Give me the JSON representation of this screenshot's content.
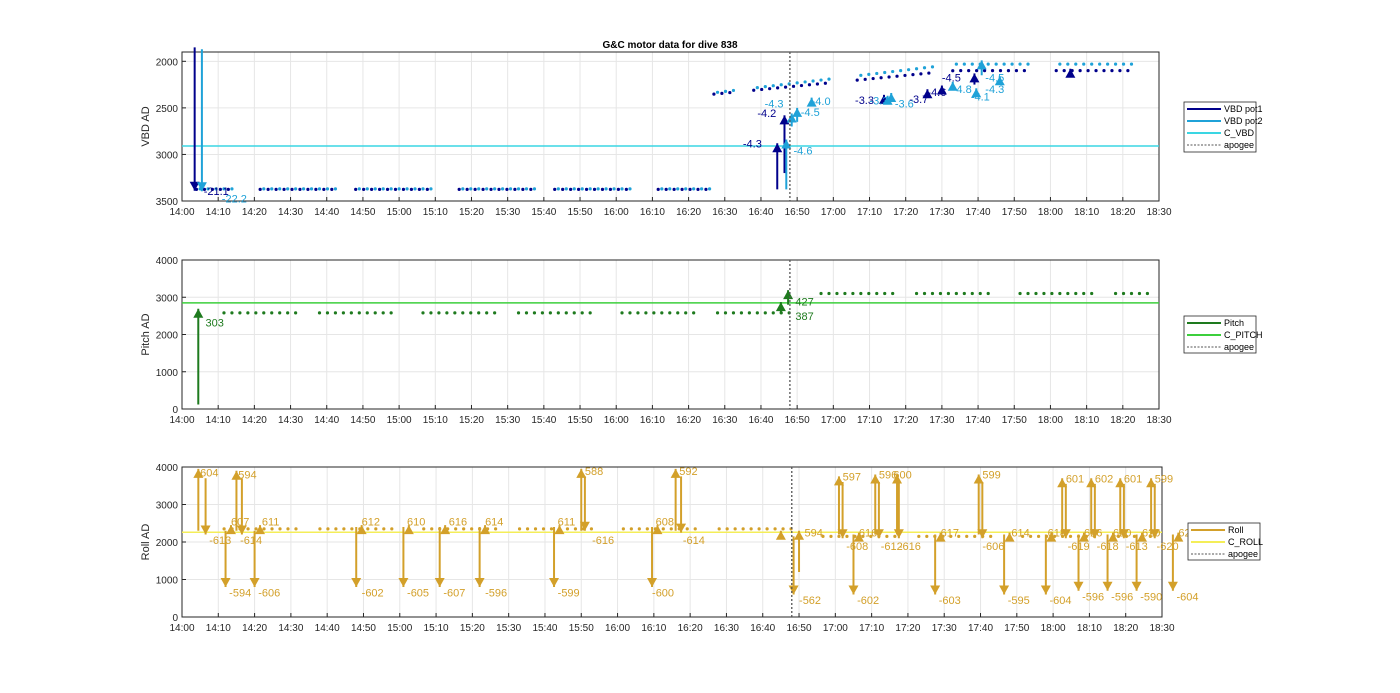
{
  "figure": {
    "title": "G&C motor data for dive 838"
  },
  "colors": {
    "vbd_pot1": "#00008b",
    "vbd_pot2": "#1fa2d8",
    "c_vbd": "#3ad6e3",
    "pitch": "#1e7a1e",
    "c_pitch": "#3ccf3c",
    "roll": "#d3a02a",
    "c_roll": "#f4ee58",
    "apogee": "#555555"
  },
  "chart_data": [
    {
      "type": "line",
      "id": "vbd",
      "title": "G&C motor data for dive 838",
      "xlabel": "",
      "ylabel": "VBD AD",
      "y_reversed": true,
      "ylim": [
        1900,
        3500
      ],
      "yticks": [
        2000,
        2500,
        3000,
        3500
      ],
      "xlim": [
        840,
        1110
      ],
      "xticks": [
        "14:00",
        "14:10",
        "14:20",
        "14:30",
        "14:40",
        "14:50",
        "15:00",
        "15:10",
        "15:20",
        "15:30",
        "15:40",
        "15:50",
        "16:00",
        "16:10",
        "16:20",
        "16:30",
        "16:40",
        "16:50",
        "17:00",
        "17:10",
        "17:20",
        "17:30",
        "17:40",
        "17:50",
        "18:00",
        "18:10",
        "18:20",
        "18:30"
      ],
      "grid": true,
      "legend_position": "outside-right",
      "legend": [
        "VBD pot1",
        "VBD pot2",
        "C_VBD",
        "apogee"
      ],
      "reference_line": {
        "name": "C_VBD",
        "y": 2910
      },
      "apogee_x": 1008,
      "series": [
        {
          "name": "VBD pot1",
          "x_range": [
            844,
            1108
          ],
          "y_before": 3375,
          "x_change": 985,
          "y_after": 2100,
          "drift_to": 2100
        },
        {
          "name": "VBD pot2",
          "x_range": [
            845,
            1108
          ],
          "y_before": 3370,
          "x_change": 986,
          "y_after": 2030,
          "drift_to": 2010
        }
      ],
      "arrows": [
        {
          "series": "VBD pot1",
          "x": 843.5,
          "y_from": 1850,
          "y_to": 3390,
          "label": "-21.1",
          "lx": 846,
          "ly": 3390
        },
        {
          "series": "VBD pot2",
          "x": 845.5,
          "y_from": 1870,
          "y_to": 3395,
          "label": "-22.2",
          "lx": 851,
          "ly": 3475
        },
        {
          "series": "VBD pot1",
          "x": 1004.5,
          "y_from": 3375,
          "y_to": 2880,
          "label": "-4.3",
          "lx": 995,
          "ly": 2885
        },
        {
          "series": "VBD pot1",
          "x": 1006.5,
          "y_from": 3200,
          "y_to": 2580,
          "label": "-4.2",
          "lx": 999,
          "ly": 2555
        },
        {
          "series": "VBD pot2",
          "x": 1007,
          "y_from": 3375,
          "y_to": 2840,
          "label": "-4.6",
          "lx": 1009,
          "ly": 2960
        },
        {
          "series": "VBD pot2",
          "x": 1008.5,
          "y_from": 2700,
          "y_to": 2560,
          "label": "-4.3",
          "lx": 1001,
          "ly": 2455
        },
        {
          "series": "VBD pot2",
          "x": 1010,
          "y_from": 2650,
          "y_to": 2500,
          "label": "-4.5",
          "lx": 1011,
          "ly": 2545
        },
        {
          "series": "VBD pot2",
          "x": 1014,
          "y_from": 2450,
          "y_to": 2390,
          "label": "-4.0",
          "lx": 1014,
          "ly": 2425
        },
        {
          "series": "VBD pot1",
          "x": 1034,
          "y_from": 2430,
          "y_to": 2360,
          "label": "-3.3",
          "lx": 1026,
          "ly": 2415
        },
        {
          "series": "VBD pot2",
          "x": 1035,
          "y_from": 2430,
          "y_to": 2370,
          "label": "-3.3",
          "lx": 1030,
          "ly": 2420
        },
        {
          "series": "VBD pot2",
          "x": 1036,
          "y_from": 2420,
          "y_to": 2340,
          "label": "-3.6",
          "lx": 1037,
          "ly": 2455
        },
        {
          "series": "VBD pot1",
          "x": 1046,
          "y_from": 2390,
          "y_to": 2300,
          "label": "-3.7",
          "lx": 1041,
          "ly": 2405
        },
        {
          "series": "VBD pot1",
          "x": 1050,
          "y_from": 2350,
          "y_to": 2260,
          "label": "-4.6",
          "lx": 1046,
          "ly": 2330
        },
        {
          "series": "VBD pot2",
          "x": 1053,
          "y_from": 2310,
          "y_to": 2220,
          "label": "-4.8",
          "lx": 1053,
          "ly": 2295
        },
        {
          "series": "VBD pot1",
          "x": 1059,
          "y_from": 2250,
          "y_to": 2130,
          "label": "-4.5",
          "lx": 1050,
          "ly": 2175
        },
        {
          "series": "VBD pot2",
          "x": 1059.5,
          "y_from": 2350,
          "y_to": 2290,
          "label": "-4.1",
          "lx": 1058,
          "ly": 2380
        },
        {
          "series": "VBD pot2",
          "x": 1061,
          "y_from": 2150,
          "y_to": 1990,
          "label": "-4.3",
          "lx": 1062,
          "ly": 2295
        },
        {
          "series": "VBD pot2",
          "x": 1066,
          "y_from": 2230,
          "y_to": 2160,
          "label": "-4.5",
          "lx": 1062,
          "ly": 2175
        },
        {
          "series": "VBD pot1",
          "x": 1085.5,
          "y_from": 2130,
          "y_to": 2080,
          "label": "",
          "lx": 0,
          "ly": 0
        }
      ]
    },
    {
      "type": "line",
      "id": "pitch",
      "xlabel": "",
      "ylabel": "Pitch AD",
      "ylim": [
        0,
        4000
      ],
      "yticks": [
        0,
        1000,
        2000,
        3000,
        4000
      ],
      "xlim": [
        840,
        1110
      ],
      "xticks": [
        "14:00",
        "14:10",
        "14:20",
        "14:30",
        "14:40",
        "14:50",
        "15:00",
        "15:10",
        "15:20",
        "15:30",
        "15:40",
        "15:50",
        "16:00",
        "16:10",
        "16:20",
        "16:30",
        "16:40",
        "16:50",
        "17:00",
        "17:10",
        "17:20",
        "17:30",
        "17:40",
        "17:50",
        "18:00",
        "18:10",
        "18:20",
        "18:30"
      ],
      "grid": true,
      "legend_position": "outside-right",
      "legend": [
        "Pitch",
        "C_PITCH",
        "apogee"
      ],
      "reference_line": {
        "name": "C_PITCH",
        "y": 2850
      },
      "apogee_x": 1008,
      "series": [
        {
          "name": "Pitch",
          "x_range": [
            845,
            1108
          ],
          "y_before": 2580,
          "x_change": 1008,
          "y_after": 3100
        }
      ],
      "arrows": [
        {
          "series": "Pitch",
          "x": 844.5,
          "y_from": 120,
          "y_to": 2690,
          "label": "303",
          "lx": 846.5,
          "ly": 2320
        },
        {
          "series": "Pitch",
          "x": 1005.5,
          "y_from": 2570,
          "y_to": 2870,
          "label": "387",
          "lx": 1009.5,
          "ly": 2500
        },
        {
          "series": "Pitch",
          "x": 1007.5,
          "y_from": 2800,
          "y_to": 3190,
          "label": "427",
          "lx": 1009.5,
          "ly": 2890
        }
      ]
    },
    {
      "type": "line",
      "id": "roll",
      "xlabel": "",
      "ylabel": "Roll AD",
      "ylim": [
        0,
        4000
      ],
      "yticks": [
        0,
        1000,
        2000,
        3000,
        4000
      ],
      "xlim": [
        840,
        1110
      ],
      "xticks": [
        "14:00",
        "14:10",
        "14:20",
        "14:30",
        "14:40",
        "14:50",
        "15:00",
        "15:10",
        "15:20",
        "15:30",
        "15:40",
        "15:50",
        "16:00",
        "16:10",
        "16:20",
        "16:30",
        "16:40",
        "16:50",
        "17:00",
        "17:10",
        "17:20",
        "17:30",
        "17:40",
        "17:50",
        "18:00",
        "18:10",
        "18:20",
        "18:30"
      ],
      "grid": true,
      "legend_position": "outside-right",
      "legend": [
        "Roll",
        "C_ROLL",
        "apogee"
      ],
      "reference_line": {
        "name": "C_ROLL",
        "y": 2260
      },
      "apogee_x": 1008,
      "series": [
        {
          "name": "Roll",
          "x_range": [
            845,
            1108
          ],
          "y_before": 2350,
          "x_change": 1008,
          "y_after": 2150
        }
      ],
      "arrows": [
        {
          "x": 844.5,
          "y_from": 2300,
          "y_to": 3950,
          "label": "604",
          "lx": 845,
          "ly": 3850
        },
        {
          "x": 846.5,
          "y_from": 3700,
          "y_to": 2200,
          "label": "-613",
          "lx": 847.5,
          "ly": 2050
        },
        {
          "x": 852,
          "y_from": 2300,
          "y_to": 800,
          "label": "-594",
          "lx": 853,
          "ly": 650
        },
        {
          "x": 853.5,
          "y_from": 2350,
          "y_to": 2450,
          "label": "607",
          "lx": 853.5,
          "ly": 2550
        },
        {
          "x": 855,
          "y_from": 2300,
          "y_to": 3900,
          "label": "594",
          "lx": 855.5,
          "ly": 3800
        },
        {
          "x": 856.5,
          "y_from": 3700,
          "y_to": 2200,
          "label": "-614",
          "lx": 856,
          "ly": 2050
        },
        {
          "x": 860,
          "y_from": 2300,
          "y_to": 800,
          "label": "-606",
          "lx": 861,
          "ly": 650
        },
        {
          "x": 861.5,
          "y_from": 2350,
          "y_to": 2450,
          "label": "611",
          "lx": 862,
          "ly": 2550
        },
        {
          "x": 888,
          "y_from": 2400,
          "y_to": 800,
          "label": "-602",
          "lx": 889.5,
          "ly": 650
        },
        {
          "x": 889.5,
          "y_from": 2350,
          "y_to": 2450,
          "label": "612",
          "lx": 889.5,
          "ly": 2550
        },
        {
          "x": 901,
          "y_from": 2400,
          "y_to": 800,
          "label": "-605",
          "lx": 902,
          "ly": 650
        },
        {
          "x": 902.5,
          "y_from": 2350,
          "y_to": 2450,
          "label": "610",
          "lx": 902,
          "ly": 2550
        },
        {
          "x": 911,
          "y_from": 2400,
          "y_to": 800,
          "label": "-607",
          "lx": 912,
          "ly": 650
        },
        {
          "x": 912.5,
          "y_from": 2350,
          "y_to": 2450,
          "label": "616",
          "lx": 913.5,
          "ly": 2550
        },
        {
          "x": 922,
          "y_from": 2400,
          "y_to": 800,
          "label": "-596",
          "lx": 923.5,
          "ly": 650
        },
        {
          "x": 923.5,
          "y_from": 2350,
          "y_to": 2450,
          "label": "614",
          "lx": 923.5,
          "ly": 2550
        },
        {
          "x": 942.5,
          "y_from": 2400,
          "y_to": 800,
          "label": "-599",
          "lx": 943.5,
          "ly": 650
        },
        {
          "x": 944,
          "y_from": 2350,
          "y_to": 2450,
          "label": "611",
          "lx": 943.5,
          "ly": 2550
        },
        {
          "x": 950,
          "y_from": 2300,
          "y_to": 3950,
          "label": "588",
          "lx": 951,
          "ly": 3900
        },
        {
          "x": 951,
          "y_from": 3750,
          "y_to": 2300,
          "label": "-616",
          "lx": 953,
          "ly": 2050
        },
        {
          "x": 969.5,
          "y_from": 2400,
          "y_to": 800,
          "label": "-600",
          "lx": 969.5,
          "ly": 650
        },
        {
          "x": 971,
          "y_from": 2350,
          "y_to": 2450,
          "label": "608",
          "lx": 970.5,
          "ly": 2550
        },
        {
          "x": 976,
          "y_from": 2300,
          "y_to": 3950,
          "label": "592",
          "lx": 977,
          "ly": 3900
        },
        {
          "x": 977.5,
          "y_from": 3750,
          "y_to": 2250,
          "label": "-614",
          "lx": 978,
          "ly": 2050
        },
        {
          "x": 1005,
          "y_from": 2150,
          "y_to": 2300,
          "label": "",
          "lx": 0,
          "ly": 0
        },
        {
          "x": 1008.5,
          "y_from": 2150,
          "y_to": 600,
          "label": "-562",
          "lx": 1010,
          "ly": 450
        },
        {
          "x": 1010,
          "y_from": 1200,
          "y_to": 2300,
          "label": "594",
          "lx": 1011.5,
          "ly": 2250
        },
        {
          "x": 1021,
          "y_from": 2200,
          "y_to": 3750,
          "label": "597",
          "lx": 1022,
          "ly": 3750
        },
        {
          "x": 1022,
          "y_from": 3600,
          "y_to": 2100,
          "label": "-608",
          "lx": 1023,
          "ly": 1900
        },
        {
          "x": 1025,
          "y_from": 2200,
          "y_to": 600,
          "label": "-602",
          "lx": 1026,
          "ly": 450
        },
        {
          "x": 1026.5,
          "y_from": 2150,
          "y_to": 2250,
          "label": "616",
          "lx": 1026.5,
          "ly": 2250
        },
        {
          "x": 1031,
          "y_from": 2200,
          "y_to": 3800,
          "label": "596",
          "lx": 1032,
          "ly": 3800
        },
        {
          "x": 1032,
          "y_from": 3600,
          "y_to": 2100,
          "label": "-612",
          "lx": 1032.5,
          "ly": 1900
        },
        {
          "x": 1037,
          "y_from": 2200,
          "y_to": 3800,
          "label": "600",
          "lx": 1036,
          "ly": 3800
        },
        {
          "x": 1037.5,
          "y_from": 3600,
          "y_to": 2100,
          "label": "-616",
          "lx": 1037.5,
          "ly": 1900
        },
        {
          "x": 1047.5,
          "y_from": 2200,
          "y_to": 600,
          "label": "-603",
          "lx": 1048.5,
          "ly": 450
        },
        {
          "x": 1049,
          "y_from": 2150,
          "y_to": 2250,
          "label": "617",
          "lx": 1049,
          "ly": 2250
        },
        {
          "x": 1059.5,
          "y_from": 2200,
          "y_to": 3800,
          "label": "599",
          "lx": 1060.5,
          "ly": 3800
        },
        {
          "x": 1060.5,
          "y_from": 3600,
          "y_to": 2100,
          "label": "-606",
          "lx": 1060.5,
          "ly": 1900
        },
        {
          "x": 1066.5,
          "y_from": 2200,
          "y_to": 600,
          "label": "-595",
          "lx": 1067.5,
          "ly": 450
        },
        {
          "x": 1068,
          "y_from": 2150,
          "y_to": 2250,
          "label": "614",
          "lx": 1068.5,
          "ly": 2250
        },
        {
          "x": 1078,
          "y_from": 2200,
          "y_to": 600,
          "label": "-604",
          "lx": 1079,
          "ly": 450
        },
        {
          "x": 1079.5,
          "y_from": 2150,
          "y_to": 2250,
          "label": "618",
          "lx": 1078.5,
          "ly": 2250
        },
        {
          "x": 1082.5,
          "y_from": 2200,
          "y_to": 3700,
          "label": "601",
          "lx": 1083.5,
          "ly": 3700
        },
        {
          "x": 1083.5,
          "y_from": 3550,
          "y_to": 2100,
          "label": "-619",
          "lx": 1084,
          "ly": 1900
        },
        {
          "x": 1087,
          "y_from": 2200,
          "y_to": 700,
          "label": "-596",
          "lx": 1088,
          "ly": 550
        },
        {
          "x": 1088.5,
          "y_from": 2150,
          "y_to": 2250,
          "label": "626",
          "lx": 1088.5,
          "ly": 2250
        },
        {
          "x": 1090.5,
          "y_from": 2200,
          "y_to": 3700,
          "label": "602",
          "lx": 1091.5,
          "ly": 3700
        },
        {
          "x": 1091.5,
          "y_from": 3550,
          "y_to": 2100,
          "label": "-618",
          "lx": 1092,
          "ly": 1900
        },
        {
          "x": 1095,
          "y_from": 2200,
          "y_to": 700,
          "label": "-596",
          "lx": 1096,
          "ly": 550
        },
        {
          "x": 1096.5,
          "y_from": 2150,
          "y_to": 2250,
          "label": "620",
          "lx": 1096.5,
          "ly": 2250
        },
        {
          "x": 1098.5,
          "y_from": 2200,
          "y_to": 3700,
          "label": "601",
          "lx": 1099.5,
          "ly": 3700
        },
        {
          "x": 1099.5,
          "y_from": 3550,
          "y_to": 2100,
          "label": "-613",
          "lx": 1100,
          "ly": 1900
        },
        {
          "x": 1103,
          "y_from": 2200,
          "y_to": 700,
          "label": "-590",
          "lx": 1104,
          "ly": 550
        },
        {
          "x": 1104.5,
          "y_from": 2150,
          "y_to": 2250,
          "label": "620",
          "lx": 1104.5,
          "ly": 2250
        },
        {
          "x": 1107,
          "y_from": 2200,
          "y_to": 3700,
          "label": "599",
          "lx": 1108,
          "ly": 3700
        },
        {
          "x": 1108,
          "y_from": 3550,
          "y_to": 2100,
          "label": "-620",
          "lx": 1108.5,
          "ly": 1900
        },
        {
          "x": 1113,
          "y_from": 2200,
          "y_to": 700,
          "label": "-604",
          "lx": 1114,
          "ly": 550
        },
        {
          "x": 1114.5,
          "y_from": 2150,
          "y_to": 2250,
          "label": "620",
          "lx": 1114.5,
          "ly": 2250
        }
      ]
    }
  ]
}
